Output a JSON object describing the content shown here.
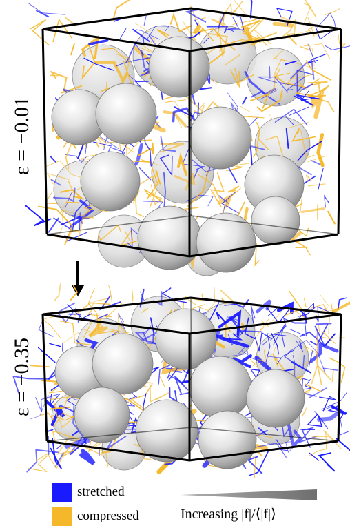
{
  "panels": [
    {
      "strain_label": "ε = −0.01"
    },
    {
      "strain_label": "ε = −0.35"
    }
  ],
  "legend": {
    "stretched": {
      "label": "stretched",
      "color": "#1a1aff"
    },
    "compressed": {
      "label": "compressed",
      "color": "#f5b82a"
    },
    "gradient_label": "Increasing |f|/⟨|f|⟩"
  },
  "colors": {
    "sphere": "#d8d8d8",
    "frame": "#000000",
    "wedge": "#808080"
  }
}
